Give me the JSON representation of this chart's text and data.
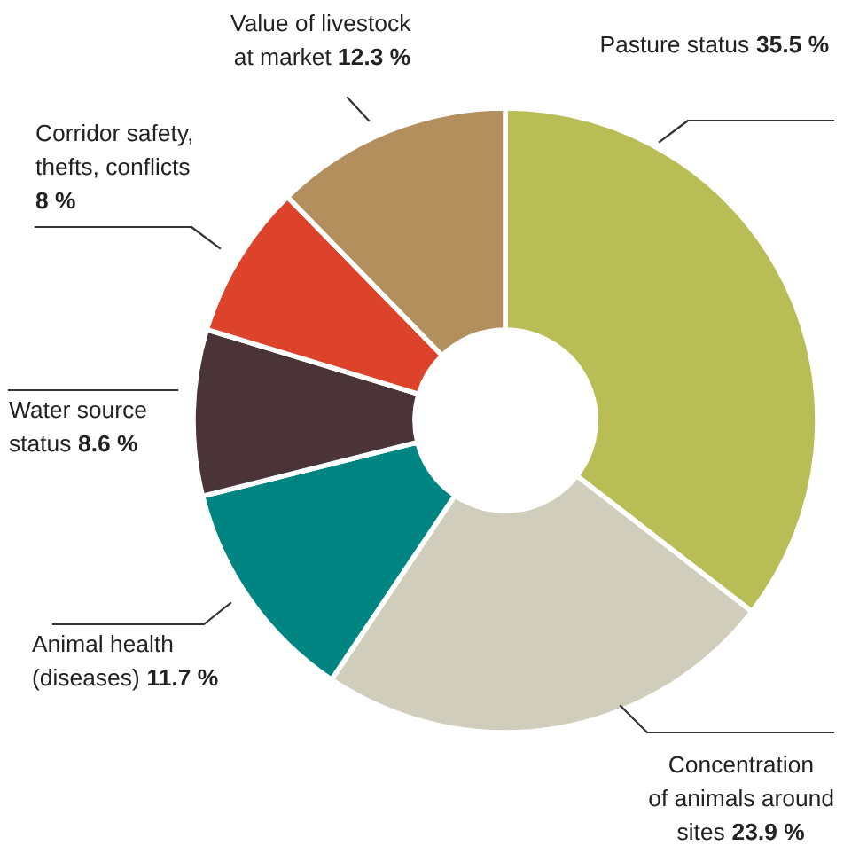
{
  "chart_data": {
    "type": "donut",
    "categories": [
      "Pasture status",
      "Concentration\nof animals around\nsites",
      "Animal health\n(diseases)",
      "Water source\nstatus",
      "Corridor safety,\nthefts, conflicts\n",
      "Value of livestock\nat market"
    ],
    "values": [
      35.5,
      23.9,
      11.7,
      8.6,
      8,
      12.3
    ],
    "value_labels": [
      "35.5 %",
      "23.9 %",
      "11.7 %",
      "8.6 %",
      "8 %",
      "12.3 %"
    ],
    "colors": [
      "#b8bd56",
      "#d1cdbc",
      "#008582",
      "#4b3437",
      "#dc432a",
      "#b28f5d"
    ]
  }
}
